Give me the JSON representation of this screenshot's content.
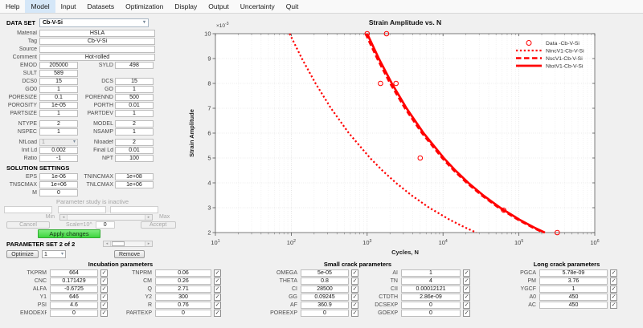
{
  "menu": {
    "items": [
      "Help",
      "Model",
      "Input",
      "Datasets",
      "Optimization",
      "Display",
      "Output",
      "Uncertainty",
      "Quit"
    ],
    "active_index": 1
  },
  "dataset": {
    "label": "DATA SET",
    "value": "Cb-V-Si"
  },
  "info_rows": [
    {
      "label": "Material",
      "value": "HSLA"
    },
    {
      "label": "Tag",
      "value": "Cb-V-Si"
    },
    {
      "label": "Source",
      "value": ""
    },
    {
      "label": "Comment",
      "value": "Hot-rolled"
    }
  ],
  "field_rows": [
    {
      "l1": "EMOD",
      "v1": "205000",
      "l2": "SYLD",
      "v2": "498"
    },
    {
      "l1": "SULT",
      "v1": "589"
    },
    {
      "l1": "DCS0",
      "v1": "15",
      "l2": "DCS",
      "v2": "15"
    },
    {
      "l1": "GO0",
      "v1": "1",
      "l2": "GO",
      "v2": "1"
    },
    {
      "l1": "PORESIZE",
      "v1": "0.1",
      "l2": "PORENND",
      "v2": "500"
    },
    {
      "l1": "POROSITY",
      "v1": "1e-05",
      "l2": "PORTH",
      "v2": "0.01"
    },
    {
      "l1": "PARTSIZE",
      "v1": "1",
      "l2": "PARTDEV",
      "v2": "1"
    },
    {
      "gap": true,
      "l1": "NTYPE",
      "v1": "2",
      "l2": "MODEL",
      "v2": "2"
    },
    {
      "l1": "NSPEC",
      "v1": "1",
      "l2": "NSAMP",
      "v2": "1"
    },
    {
      "gap": true,
      "l1": "NfLoad",
      "v1": "1",
      "type1": "select-disabled",
      "l2": "Nloadef",
      "v2": "2"
    },
    {
      "l1": "Init Ld",
      "v1": "0.002",
      "l2": "Final Ld",
      "v2": "0.01"
    },
    {
      "l1": "Ratio",
      "v1": "-1",
      "l2": "NPT",
      "v2": "100"
    }
  ],
  "solution": {
    "header": "SOLUTION SETTINGS",
    "rows": [
      {
        "l1": "EPS",
        "v1": "1e-06",
        "l2": "TNINCMAX",
        "v2": "1e+08"
      },
      {
        "l1": "TNSCMAX",
        "v1": "1e+06",
        "l2": "TNLCMAX",
        "v2": "1e+06"
      },
      {
        "l1": "M",
        "v1": "0"
      }
    ]
  },
  "param_study": {
    "status": "Parameter study is inactive",
    "fields": [
      "",
      "",
      ""
    ],
    "min_label": "Min",
    "max_label": "Max",
    "cancel_label": "Cancel",
    "scale_label": "Scale=10^",
    "scale_value": "0",
    "accept_label": "Accept",
    "apply_label": "Apply changes",
    "apply_color": "#4fd94f"
  },
  "param_set": {
    "label": "PARAMETER SET 2 of 2",
    "optimize_label": "Optimize",
    "select_value": "1",
    "remove_label": "Remove"
  },
  "param_groups": [
    {
      "title": "Incubation parameters",
      "rows": [
        {
          "l1": "TKPRM",
          "v1": "664",
          "c1": true,
          "l2": "TNPRM",
          "v2": "0.06",
          "c2": true
        },
        {
          "l1": "CNC",
          "v1": "0.171429",
          "c1": true,
          "l2": "CM",
          "v2": "0.26",
          "c2": true
        },
        {
          "l1": "ALFA",
          "v1": "-0.6725",
          "c1": true,
          "l2": "Q",
          "v2": "2.71",
          "c2": true
        },
        {
          "l1": "Y1",
          "v1": "646",
          "c1": true,
          "l2": "Y2",
          "v2": "300",
          "c2": true
        },
        {
          "l1": "PSI",
          "v1": "4.6",
          "c1": true,
          "l2": "R",
          "v2": "0.76",
          "c2": true
        },
        {
          "l1": "EMODEXP",
          "v1": "0",
          "c1": true,
          "l2": "PARTEXP",
          "v2": "0",
          "c2": true
        }
      ]
    },
    {
      "title": "Small crack parameters",
      "rows": [
        {
          "l1": "OMEGA",
          "v1": "5e-05",
          "c1": true,
          "l2": "AI",
          "v2": "1",
          "c2": true
        },
        {
          "l1": "THETA",
          "v1": "0.8",
          "c1": true,
          "l2": "TN",
          "v2": "4",
          "c2": true
        },
        {
          "l1": "CI",
          "v1": "28500",
          "c1": true,
          "l2": "CII",
          "v2": "0.00012121",
          "c2": true
        },
        {
          "l1": "GG",
          "v1": "0.09245",
          "c1": true,
          "l2": "CTDTH",
          "v2": "2.86e-09",
          "c2": true
        },
        {
          "l1": "AF",
          "v1": "360.9",
          "c1": true,
          "l2": "DCSEXP",
          "v2": "0",
          "c2": true
        },
        {
          "l1": "POREEXP",
          "v1": "0",
          "c1": true,
          "l2": "GOEXP",
          "v2": "0",
          "c2": true
        }
      ]
    },
    {
      "title": "Long crack parameters",
      "rows": [
        {
          "l1": "PGCA",
          "v1": "5.78e-09",
          "c1": true
        },
        {
          "l1": "PM",
          "v1": "3.76",
          "c1": true
        },
        {
          "l1": "YGCF",
          "v1": "1",
          "c1": true
        },
        {
          "l1": "A0",
          "v1": "450",
          "c1": true
        },
        {
          "l1": "AC",
          "v1": "450",
          "c1": true
        }
      ]
    }
  ],
  "chart_data": {
    "type": "line",
    "title": "Strain Amplitude vs. N",
    "xlabel": "Cycles, N",
    "ylabel": "Strain Amplitude",
    "x_scale": "log",
    "xlim": [
      10,
      1000000
    ],
    "x_tick_exponents": [
      1,
      2,
      3,
      4,
      5,
      6
    ],
    "y_unit_multiplier_mant": "×10",
    "y_unit_multiplier_exp": "-3",
    "y_ticks": [
      2,
      3,
      4,
      5,
      6,
      7,
      8,
      9,
      10
    ],
    "ylim_e3": [
      2,
      10
    ],
    "grid": true,
    "legend_position": "top-right",
    "line_color": "#ff0000",
    "series": [
      {
        "name": "Data -Cb-V-Si",
        "type": "scatter",
        "marker": "circle",
        "color": "#ff0000",
        "points": [
          [
            1000,
            10
          ],
          [
            1800,
            10
          ],
          [
            1500,
            8
          ],
          [
            2400,
            8
          ],
          [
            5000,
            5
          ],
          [
            63000,
            2.9
          ],
          [
            320000,
            2
          ]
        ]
      },
      {
        "name": "NincV1-Cb-V-Si",
        "type": "line",
        "style": "dotted",
        "color": "#ff0000",
        "points": [
          [
            95,
            10
          ],
          [
            138,
            9
          ],
          [
            209,
            8
          ],
          [
            334,
            7
          ],
          [
            574,
            6
          ],
          [
            1091,
            5
          ],
          [
            1581,
            4.5
          ],
          [
            2394,
            4
          ],
          [
            3830,
            3.5
          ],
          [
            6580,
            3
          ],
          [
            12520,
            2.5
          ],
          [
            19665,
            2.2
          ],
          [
            27455,
            2
          ]
        ]
      },
      {
        "name": "NscV1-Cb-V-Si",
        "type": "line",
        "style": "dashed",
        "color": "#ff0000",
        "points": [
          [
            950,
            10
          ],
          [
            1353,
            9
          ],
          [
            2006,
            8
          ],
          [
            3143,
            7
          ],
          [
            5263,
            6
          ],
          [
            9700,
            5
          ],
          [
            13800,
            4.5
          ],
          [
            20480,
            4
          ],
          [
            32070,
            3.5
          ],
          [
            53770,
            3
          ],
          [
            99000,
            2.5
          ],
          [
            151600,
            2.2
          ],
          [
            208900,
            2
          ]
        ]
      },
      {
        "name": "NtotV1-Cb-V-Si",
        "type": "line",
        "style": "solid",
        "color": "#ff0000",
        "points": [
          [
            1000,
            10
          ],
          [
            1424,
            9
          ],
          [
            2112,
            8
          ],
          [
            3308,
            7
          ],
          [
            5540,
            6
          ],
          [
            10213,
            5
          ],
          [
            14530,
            4.5
          ],
          [
            21560,
            4
          ],
          [
            33760,
            3.5
          ],
          [
            56600,
            3
          ],
          [
            104200,
            2.5
          ],
          [
            159600,
            2.2
          ],
          [
            219900,
            2
          ]
        ]
      }
    ]
  }
}
